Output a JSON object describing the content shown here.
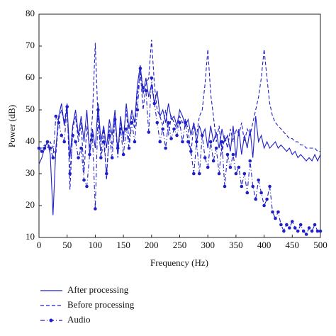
{
  "chart_data": {
    "type": "line",
    "xlabel": "Frequency (Hz)",
    "ylabel": "Power (dB)",
    "xlim": [
      0,
      500
    ],
    "ylim": [
      10,
      80
    ],
    "xticks": [
      0,
      50,
      100,
      150,
      200,
      250,
      300,
      350,
      400,
      450,
      500
    ],
    "yticks": [
      10,
      20,
      30,
      40,
      50,
      60,
      70,
      80
    ],
    "x": [
      0,
      5,
      10,
      15,
      20,
      25,
      30,
      35,
      40,
      45,
      50,
      55,
      60,
      65,
      70,
      75,
      80,
      85,
      90,
      95,
      100,
      105,
      110,
      115,
      120,
      125,
      130,
      135,
      140,
      145,
      150,
      155,
      160,
      165,
      170,
      175,
      180,
      185,
      190,
      195,
      200,
      205,
      210,
      215,
      220,
      225,
      230,
      235,
      240,
      245,
      250,
      255,
      260,
      265,
      270,
      275,
      280,
      285,
      290,
      295,
      300,
      305,
      310,
      315,
      320,
      325,
      330,
      335,
      340,
      345,
      350,
      355,
      360,
      365,
      370,
      375,
      380,
      385,
      390,
      395,
      400,
      405,
      410,
      415,
      420,
      425,
      430,
      435,
      440,
      445,
      450,
      455,
      460,
      465,
      470,
      475,
      480,
      485,
      490,
      495,
      500
    ],
    "series": [
      {
        "name": "After processing",
        "color": "#1f1fc8",
        "style": "solid",
        "markers": false,
        "values": [
          33,
          35,
          38,
          40,
          36,
          17,
          38,
          48,
          52,
          45,
          51,
          35,
          45,
          50,
          42,
          48,
          40,
          50,
          36,
          44,
          38,
          52,
          40,
          45,
          38,
          47,
          42,
          50,
          36,
          48,
          40,
          52,
          44,
          50,
          46,
          58,
          64,
          55,
          60,
          54,
          58,
          52,
          56,
          48,
          50,
          46,
          52,
          47,
          48,
          45,
          50,
          48,
          45,
          47,
          42,
          46,
          40,
          45,
          42,
          44,
          38,
          45,
          40,
          43,
          38,
          44,
          40,
          42,
          37,
          45,
          35,
          44,
          36,
          42,
          38,
          44,
          35,
          48,
          40,
          42,
          38,
          40,
          38,
          39,
          40,
          38,
          39,
          38,
          37,
          38,
          36,
          37,
          35,
          36,
          35,
          34,
          35,
          34,
          36,
          34,
          36
        ]
      },
      {
        "name": "Before processing",
        "color": "#1f1fc8",
        "style": "dashed",
        "markers": false,
        "values": [
          38,
          38,
          39,
          38,
          40,
          38,
          36,
          47,
          50,
          46,
          52,
          25,
          44,
          48,
          40,
          46,
          30,
          45,
          38,
          48,
          71,
          46,
          36,
          44,
          28,
          45,
          38,
          48,
          35,
          46,
          42,
          50,
          40,
          48,
          44,
          55,
          62,
          50,
          58,
          60,
          72,
          58,
          50,
          48,
          45,
          50,
          42,
          48,
          46,
          44,
          48,
          46,
          47,
          44,
          36,
          46,
          42,
          48,
          50,
          58,
          69,
          55,
          48,
          40,
          45,
          36,
          42,
          38,
          44,
          40,
          44,
          42,
          46,
          40,
          44,
          42,
          46,
          50,
          54,
          60,
          69,
          60,
          52,
          48,
          46,
          45,
          44,
          43,
          42,
          41,
          41,
          40,
          40,
          39,
          39,
          38,
          38,
          38,
          38,
          37,
          37
        ]
      },
      {
        "name": "Audio",
        "color": "#1f1fc8",
        "style": "dashdot",
        "markers": true,
        "values": [
          38,
          37,
          38,
          40,
          38,
          35,
          48,
          46,
          42,
          40,
          51,
          30,
          42,
          40,
          35,
          38,
          28,
          26,
          36,
          42,
          19,
          50,
          35,
          40,
          30,
          42,
          35,
          47,
          38,
          44,
          36,
          44,
          38,
          46,
          40,
          50,
          63,
          57,
          56,
          43,
          60,
          52,
          46,
          40,
          44,
          38,
          46,
          41,
          44,
          42,
          46,
          40,
          46,
          40,
          37,
          30,
          40,
          30,
          42,
          35,
          32,
          40,
          34,
          38,
          30,
          40,
          26,
          36,
          32,
          36,
          30,
          32,
          26,
          30,
          24,
          34,
          26,
          22,
          28,
          24,
          20,
          22,
          26,
          18,
          16,
          18,
          14,
          12,
          14,
          13,
          15,
          13,
          12,
          14,
          12,
          11,
          13,
          12,
          14,
          12,
          12
        ]
      }
    ]
  }
}
